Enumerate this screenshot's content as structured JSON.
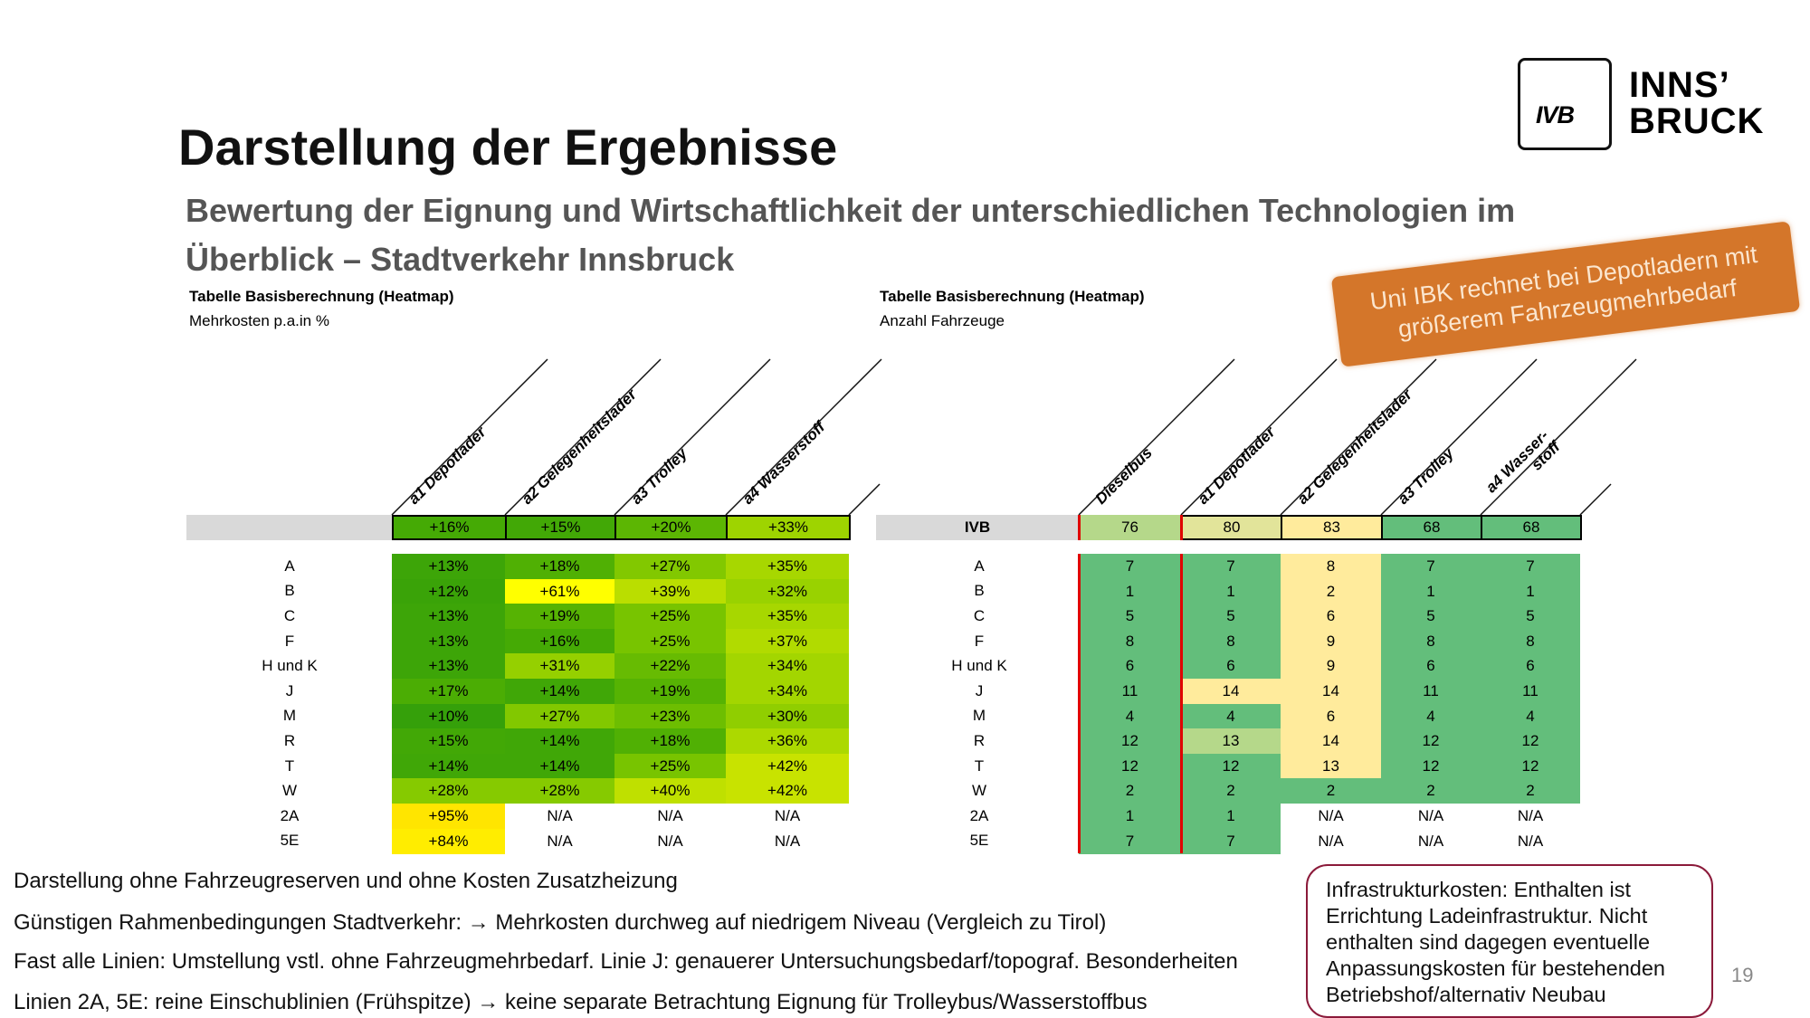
{
  "title": "Darstellung der Ergebnisse",
  "subtitle_line1": "Bewertung der Eignung und Wirtschaftlichkeit der unterschiedlichen Technologien im",
  "subtitle_line2": "Überblick – Stadtverkehr Innsbruck",
  "logo": {
    "mark": "IVB",
    "line1": "INNS’",
    "line2": "BRUCK"
  },
  "banner": {
    "line1": "Uni IBK rechnet bei Depotladern mit",
    "line2": "größerem Fahrzeugmehrbedarf"
  },
  "left_table": {
    "label": "Tabelle Basisberechnung (Heatmap)",
    "sublabel": "Mehrkosten p.a.in %",
    "columns": [
      "a1 Depotlader",
      "a2 Gelegenheitslader",
      "a3 Trolley",
      "a4 Wasserstoff"
    ],
    "summary": {
      "label": "",
      "values": [
        "+16%",
        "+15%",
        "+20%",
        "+33%"
      ]
    },
    "rows": [
      {
        "label": "A",
        "values": [
          "+13%",
          "+18%",
          "+27%",
          "+35%"
        ]
      },
      {
        "label": "B",
        "values": [
          "+12%",
          "+61%",
          "+39%",
          "+32%"
        ]
      },
      {
        "label": "C",
        "values": [
          "+13%",
          "+19%",
          "+25%",
          "+35%"
        ]
      },
      {
        "label": "F",
        "values": [
          "+13%",
          "+16%",
          "+25%",
          "+37%"
        ]
      },
      {
        "label": "H und K",
        "values": [
          "+13%",
          "+31%",
          "+22%",
          "+34%"
        ]
      },
      {
        "label": "J",
        "values": [
          "+17%",
          "+14%",
          "+19%",
          "+34%"
        ]
      },
      {
        "label": "M",
        "values": [
          "+10%",
          "+27%",
          "+23%",
          "+30%"
        ]
      },
      {
        "label": "R",
        "values": [
          "+15%",
          "+14%",
          "+18%",
          "+36%"
        ]
      },
      {
        "label": "T",
        "values": [
          "+14%",
          "+14%",
          "+25%",
          "+42%"
        ]
      },
      {
        "label": "W",
        "values": [
          "+28%",
          "+28%",
          "+40%",
          "+42%"
        ]
      },
      {
        "label": "2A",
        "values": [
          "+95%",
          "N/A",
          "N/A",
          "N/A"
        ]
      },
      {
        "label": "5E",
        "values": [
          "+84%",
          "N/A",
          "N/A",
          "N/A"
        ]
      }
    ],
    "heat_scale": [
      [
        10,
        "#35a00a"
      ],
      [
        16,
        "#45aa05"
      ],
      [
        25,
        "#78c400"
      ],
      [
        33,
        "#9ed400"
      ],
      [
        42,
        "#c8e300"
      ],
      [
        61,
        "#ffff00"
      ],
      [
        95,
        "#ffe500"
      ]
    ]
  },
  "right_table": {
    "label": "Tabelle Basisberechnung (Heatmap)",
    "sublabel": "Anzahl Fahrzeuge",
    "columns": [
      "Dieselbus",
      "a1 Depotlader",
      "a2 Gelegenheitslader",
      "a3 Trolley",
      "a4 Wasser-\nstoff"
    ],
    "colors": {
      "g": "#63be7b",
      "y": "#ffeb9c",
      "lg": "#b5d88a",
      "k": "#e2e49a",
      "w": "#ffffff"
    },
    "summary": {
      "label": "IVB",
      "values": [
        "76",
        "80",
        "83",
        "68",
        "68"
      ],
      "colors": [
        "lg",
        "k",
        "y",
        "g",
        "g"
      ]
    },
    "rows": [
      {
        "label": "A",
        "values": [
          "7",
          "7",
          "8",
          "7",
          "7"
        ],
        "colors": [
          "g",
          "g",
          "y",
          "g",
          "g"
        ]
      },
      {
        "label": "B",
        "values": [
          "1",
          "1",
          "2",
          "1",
          "1"
        ],
        "colors": [
          "g",
          "g",
          "y",
          "g",
          "g"
        ]
      },
      {
        "label": "C",
        "values": [
          "5",
          "5",
          "6",
          "5",
          "5"
        ],
        "colors": [
          "g",
          "g",
          "y",
          "g",
          "g"
        ]
      },
      {
        "label": "F",
        "values": [
          "8",
          "8",
          "9",
          "8",
          "8"
        ],
        "colors": [
          "g",
          "g",
          "y",
          "g",
          "g"
        ]
      },
      {
        "label": "H und K",
        "values": [
          "6",
          "6",
          "9",
          "6",
          "6"
        ],
        "colors": [
          "g",
          "g",
          "y",
          "g",
          "g"
        ]
      },
      {
        "label": "J",
        "values": [
          "11",
          "14",
          "14",
          "11",
          "11"
        ],
        "colors": [
          "g",
          "y",
          "y",
          "g",
          "g"
        ]
      },
      {
        "label": "M",
        "values": [
          "4",
          "4",
          "6",
          "4",
          "4"
        ],
        "colors": [
          "g",
          "g",
          "y",
          "g",
          "g"
        ]
      },
      {
        "label": "R",
        "values": [
          "12",
          "13",
          "14",
          "12",
          "12"
        ],
        "colors": [
          "g",
          "lg",
          "y",
          "g",
          "g"
        ]
      },
      {
        "label": "T",
        "values": [
          "12",
          "12",
          "13",
          "12",
          "12"
        ],
        "colors": [
          "g",
          "g",
          "y",
          "g",
          "g"
        ]
      },
      {
        "label": "W",
        "values": [
          "2",
          "2",
          "2",
          "2",
          "2"
        ],
        "colors": [
          "g",
          "g",
          "g",
          "g",
          "g"
        ]
      },
      {
        "label": "2A",
        "values": [
          "1",
          "1",
          "N/A",
          "N/A",
          "N/A"
        ],
        "colors": [
          "g",
          "g",
          "w",
          "w",
          "w"
        ]
      },
      {
        "label": "5E",
        "values": [
          "7",
          "7",
          "N/A",
          "N/A",
          "N/A"
        ],
        "colors": [
          "g",
          "g",
          "w",
          "w",
          "w"
        ]
      }
    ]
  },
  "notes": [
    "Darstellung ohne Fahrzeugreserven und ohne Kosten Zusatzheizung",
    "Günstigen Rahmenbedingungen Stadtverkehr: → Mehrkosten durchweg auf niedrigem Niveau (Vergleich zu Tirol)",
    "Fast alle Linien: Umstellung vstl. ohne Fahrzeugmehrbedarf. Linie J: genauerer Untersuchungsbedarf/topograf. Besonderheiten",
    "Linien 2A, 5E: reine Einschublinien (Frühspitze) → keine separate Betrachtung Eignung für Trolleybus/Wasserstoffbus"
  ],
  "infobox": "Infrastrukturkosten: Enthalten ist Errichtung Ladeinfrastruktur. Nicht enthalten sind dagegen eventuelle Anpassungskosten für bestehenden Betriebshof/alternativ Neubau",
  "page_number": "19"
}
